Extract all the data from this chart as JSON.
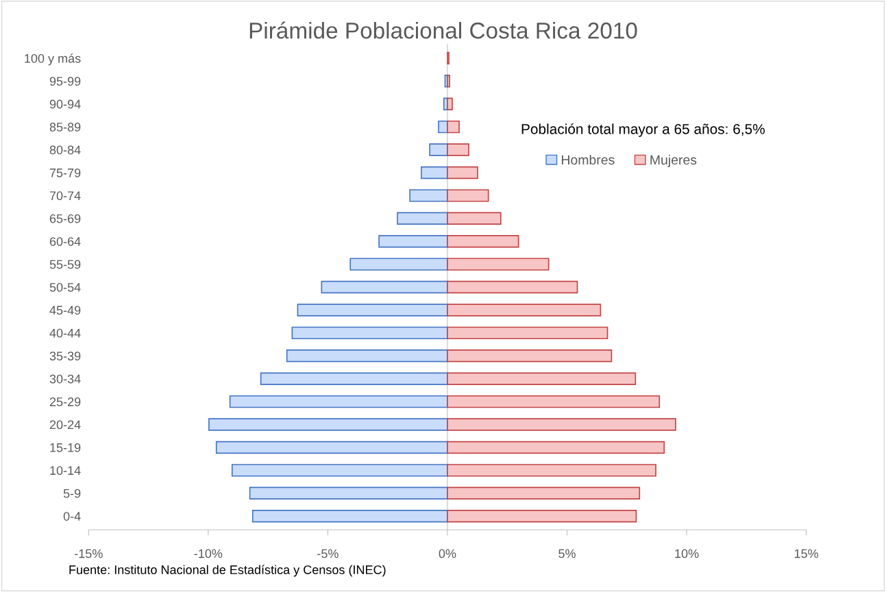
{
  "chart_data": {
    "type": "bar",
    "orientation": "horizontal",
    "stacked": true,
    "title": "Pirámide Poblacional Costa Rica 2010",
    "categories": [
      "100 y más",
      "95-99",
      "90-94",
      "85-89",
      "80-84",
      "75-79",
      "70-74",
      "65-69",
      "60-64",
      "55-59",
      "50-54",
      "45-49",
      "40-44",
      "35-39",
      "30-34",
      "25-29",
      "20-24",
      "15-19",
      "10-14",
      "5-9",
      "0-4"
    ],
    "series": [
      {
        "name": "Hombres",
        "color": "#c9dcfa",
        "values": [
          null,
          -0.1,
          -0.15,
          -0.37,
          -0.74,
          -1.09,
          -1.57,
          -2.09,
          -2.86,
          -4.06,
          -5.26,
          -6.26,
          -6.49,
          -6.71,
          -7.8,
          -9.09,
          -9.97,
          -9.66,
          -9.0,
          -8.26,
          -8.14
        ]
      },
      {
        "name": "Mujeres",
        "color": "#f7c5c5",
        "values": [
          0.06,
          0.09,
          0.2,
          0.49,
          0.89,
          1.26,
          1.71,
          2.23,
          2.97,
          4.23,
          5.43,
          6.4,
          6.69,
          6.86,
          7.86,
          8.86,
          9.54,
          9.06,
          8.71,
          8.03,
          7.89
        ]
      }
    ],
    "xlim": [
      -15,
      15
    ],
    "xticks": [
      {
        "value": -15,
        "label": "-15%"
      },
      {
        "value": -10,
        "label": "-10%"
      },
      {
        "value": -5,
        "label": "-5%"
      },
      {
        "value": 0,
        "label": "0%"
      },
      {
        "value": 5,
        "label": "5%"
      },
      {
        "value": 10,
        "label": "10%"
      },
      {
        "value": 15,
        "label": "15%"
      }
    ],
    "legend": "top right",
    "annotations": [
      "Población total mayor a 65 años: 6,5%",
      "Fuente: Instituto Nacional de Estadística y Censos (INEC)"
    ]
  }
}
